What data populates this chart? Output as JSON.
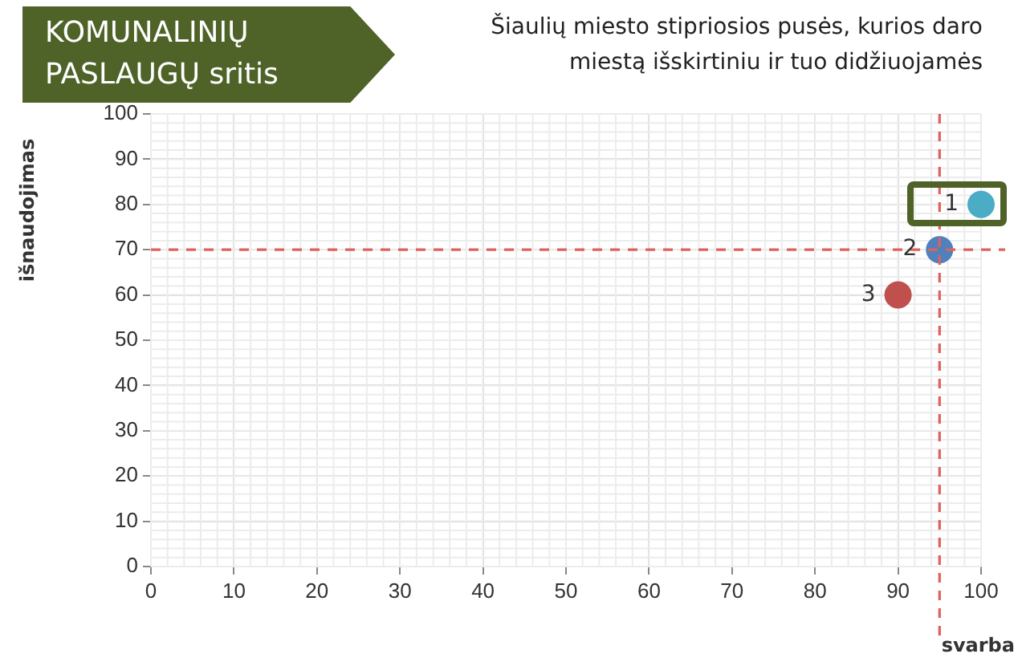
{
  "chart_data": {
    "type": "scatter",
    "title": "KOMUNALINIŲ PASLAUGŲ sritis",
    "subtitle": "Šiaulių miesto stipriosios pusės, kurios daro miestą išskirtiniu ir tuo didžiuojamės",
    "xlabel": "svarba",
    "ylabel": "išnaudojimas",
    "x": [
      100,
      95,
      90
    ],
    "values": [
      80,
      70,
      60
    ],
    "colors": [
      "#4bacc6",
      "#4f81bd",
      "#c0504d"
    ],
    "annotations": [
      {
        "text": "1",
        "x": 100,
        "y": 80
      },
      {
        "text": "2",
        "x": 95,
        "y": 70
      },
      {
        "text": "3",
        "x": 90,
        "y": 60
      }
    ],
    "ref_lines": [
      {
        "axis": "x",
        "value": 95,
        "color": "#e0605c",
        "line_style": "dashed"
      },
      {
        "axis": "y",
        "value": 70,
        "color": "#e0605c",
        "line_style": "dashed"
      }
    ],
    "xlim": [
      0,
      100
    ],
    "xticks": [
      0,
      10,
      20,
      30,
      40,
      50,
      60,
      70,
      80,
      90,
      100
    ],
    "ylim": [
      0,
      100
    ],
    "yticks": [
      0,
      10,
      20,
      30,
      40,
      50,
      60,
      70,
      80,
      90,
      100
    ],
    "grid": true,
    "legend": false,
    "marker": "circle"
  }
}
